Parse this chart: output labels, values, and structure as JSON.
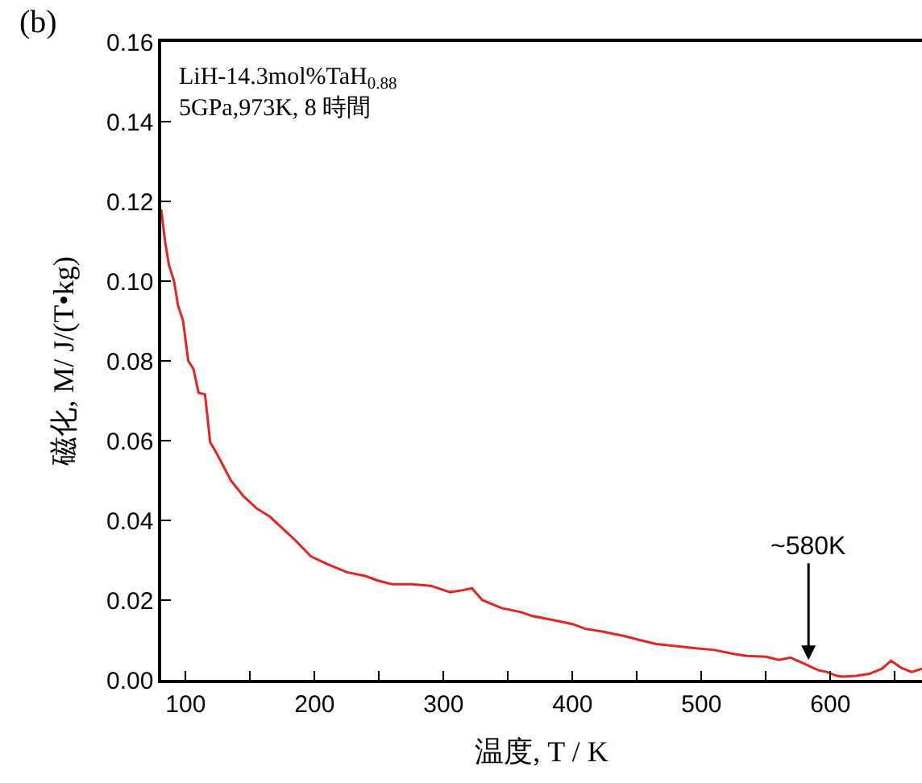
{
  "chart_data": {
    "type": "line",
    "xlabel": "温度, T / K",
    "ylabel": "磁化, M/ J/(T•kg)",
    "annotations": [
      "(b)",
      "LiH-14.3mol%TaH$_{0.88}$\n5GPa,973K, 8 時間",
      {
        "text": "~580K",
        "x": 583,
        "y": 0.005
      }
    ],
    "series": [
      {
        "color": "#e8231e",
        "x": [
          81,
          84,
          87,
          91,
          94,
          98,
          102,
          106,
          110,
          115,
          119,
          122,
          127,
          135,
          145,
          155,
          165,
          175,
          185,
          197,
          210,
          225,
          240,
          248,
          260,
          275,
          290,
          305,
          315,
          322,
          330,
          345,
          360,
          369,
          385,
          400,
          410,
          425,
          440,
          452,
          465,
          480,
          494,
          510,
          525,
          535,
          550,
          560,
          569,
          580,
          590,
          597,
          605,
          610,
          620,
          630,
          640,
          647,
          655,
          663,
          671
        ],
        "values": [
          0.118,
          0.11,
          0.104,
          0.1,
          0.094,
          0.09,
          0.08,
          0.078,
          0.072,
          0.0716,
          0.0596,
          0.058,
          0.055,
          0.05,
          0.046,
          0.043,
          0.041,
          0.038,
          0.035,
          0.031,
          0.029,
          0.027,
          0.026,
          0.025,
          0.024,
          0.024,
          0.0236,
          0.022,
          0.0225,
          0.023,
          0.02,
          0.018,
          0.017,
          0.016,
          0.015,
          0.014,
          0.0128,
          0.012,
          0.011,
          0.01,
          0.009,
          0.0085,
          0.008,
          0.0075,
          0.0065,
          0.006,
          0.0058,
          0.005,
          0.0056,
          0.004,
          0.0025,
          0.002,
          0.001,
          0.0008,
          0.001,
          0.0015,
          0.0028,
          0.0048,
          0.003,
          0.002,
          0.0028
        ]
      }
    ],
    "xlim": [
      81,
      671
    ],
    "ylim": [
      0,
      0.16
    ],
    "xticks": [
      100,
      {
        "value": 150,
        "label": null
      },
      200,
      {
        "value": 250,
        "label": null
      },
      300,
      {
        "value": 350,
        "label": null
      },
      400,
      {
        "value": 450,
        "label": null
      },
      500,
      {
        "value": 550,
        "label": null
      },
      600,
      {
        "value": 650,
        "label": null
      }
    ],
    "yticks": [
      {
        "value": 0,
        "label": "0.00"
      },
      0.02,
      0.04,
      0.06,
      0.08,
      {
        "value": 0.1,
        "label": "0.10"
      },
      0.12,
      0.14,
      0.16
    ],
    "marker": "none",
    "line_style": "solid"
  }
}
